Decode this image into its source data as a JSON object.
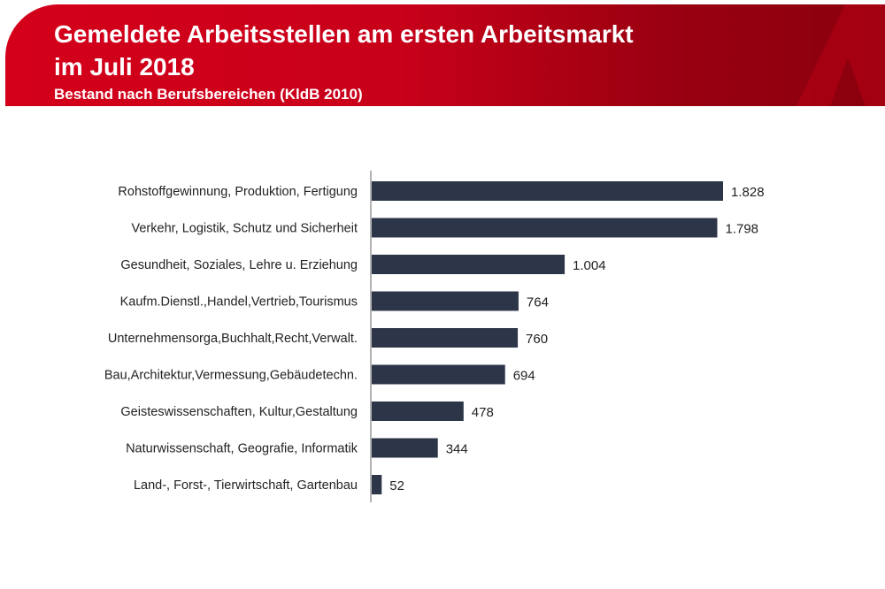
{
  "header": {
    "title_line1": "Gemeldete Arbeitsstellen am ersten Arbeitsmarkt",
    "title_line2": "im Juli 2018",
    "subtitle": "Bestand nach Berufsbereichen (KldB 2010)",
    "logo": "A",
    "colors": {
      "band_left": "#d4001a",
      "band_right": "#8a000e"
    }
  },
  "chart_data": {
    "type": "bar",
    "orientation": "horizontal",
    "title": "Gemeldete Arbeitsstellen am ersten Arbeitsmarkt im Juli 2018",
    "subtitle": "Bestand nach Berufsbereichen (KldB 2010)",
    "categories": [
      "Rohstoffgewinnung, Produktion, Fertigung",
      "Verkehr, Logistik, Schutz und Sicherheit",
      "Gesundheit, Soziales, Lehre u. Erziehung",
      "Kaufm.Dienstl.,Handel,Vertrieb,Tourismus",
      "Unternehmensorga,Buchhalt,Recht,Verwalt.",
      "Bau,Architektur,Vermessung,Gebäudetechn.",
      "Geisteswissenschaften, Kultur,Gestaltung",
      "Naturwissenschaft, Geografie, Informatik",
      "Land-, Forst-, Tierwirtschaft, Gartenbau"
    ],
    "values": [
      1828,
      1798,
      1004,
      764,
      760,
      694,
      478,
      344,
      52
    ],
    "data_labels": [
      "1.828",
      "1.798",
      "1.004",
      "764",
      "760",
      "694",
      "478",
      "344",
      "52"
    ],
    "xlim": [
      0,
      1828
    ],
    "grid": false,
    "bar_color": "#2d3548"
  }
}
